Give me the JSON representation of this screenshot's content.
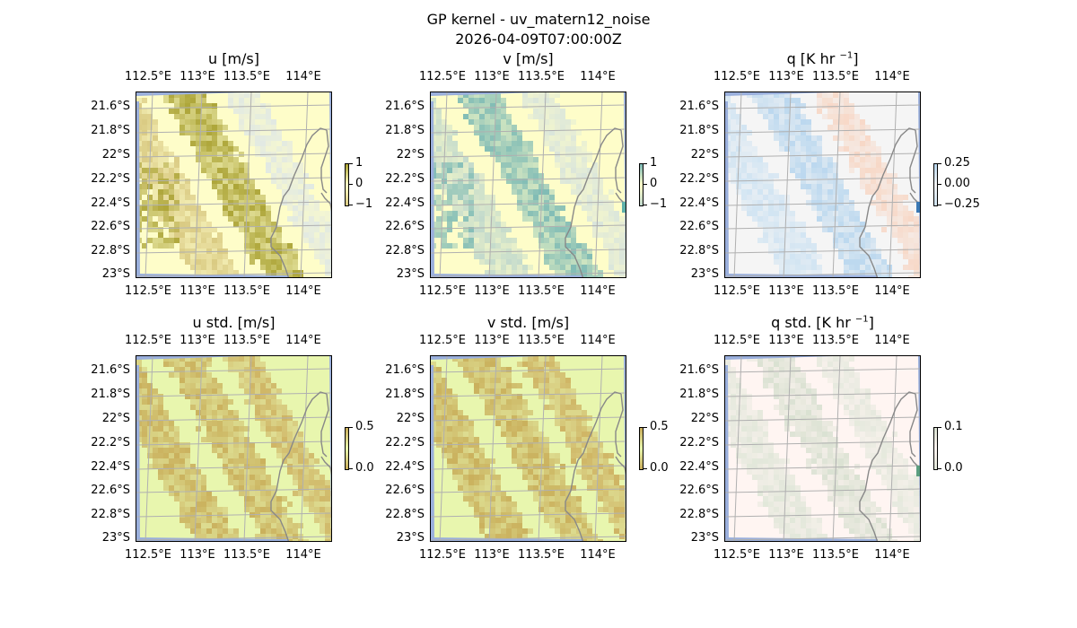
{
  "figure": {
    "title_line1": "GP kernel - uv_matern12_noise",
    "title_line2": "2026-04-09T07:00:00Z"
  },
  "axes_ticks": {
    "lon": [
      "112.5°E",
      "113°E",
      "113.5°E",
      "114°E"
    ],
    "lat": [
      "21.6°S",
      "21.8°S",
      "22°S",
      "22.2°S",
      "22.4°S",
      "22.6°S",
      "22.8°S",
      "23°S"
    ]
  },
  "colors": {
    "ocean_mask": "#9aafdc",
    "coastline": "#888888",
    "grid": "#b0b0b0"
  },
  "chart_data": [
    {
      "type": "heatmap",
      "id": "u",
      "title": "u [m/s]",
      "title_sup": "",
      "colorbar": {
        "ticks": [
          "1",
          "0",
          "−1"
        ],
        "range": [
          -1,
          1
        ]
      },
      "base_color": "#fefdc9",
      "band_colors": [
        "#d8c880",
        "#a8a030",
        "#e0e8e4"
      ]
    },
    {
      "type": "heatmap",
      "id": "v",
      "title": "v [m/s]",
      "title_sup": "",
      "colorbar": {
        "ticks": [
          "1",
          "0",
          "−1"
        ],
        "range": [
          -1,
          1
        ]
      },
      "base_color": "#fefdc9",
      "band_colors": [
        "#c0d8cc",
        "#7ab8b4",
        "#d8e4dc"
      ]
    },
    {
      "type": "heatmap",
      "id": "q",
      "title": "q [K hr ",
      "title_sup": "−1",
      "title_end": "]",
      "colorbar": {
        "ticks": [
          "0.25",
          "0.00",
          "−0.25"
        ],
        "range": [
          -0.25,
          0.25
        ]
      },
      "base_color": "#f5f5f5",
      "band_colors": [
        "#cfe3f2",
        "#b8d6ee",
        "#f7d6c4"
      ]
    },
    {
      "type": "heatmap",
      "id": "u_std",
      "title": "u std. [m/s]",
      "title_sup": "",
      "colorbar": {
        "ticks": [
          "0.5",
          "0.0"
        ],
        "range": [
          0,
          0.5
        ]
      },
      "base_color": "#e8f6ae",
      "band_colors": [
        "#c8ac58",
        "#c8ac58",
        "#cdb060"
      ]
    },
    {
      "type": "heatmap",
      "id": "v_std",
      "title": "v std. [m/s]",
      "title_sup": "",
      "colorbar": {
        "ticks": [
          "0.5",
          "0.0"
        ],
        "range": [
          0,
          0.5
        ]
      },
      "base_color": "#e8f6ae",
      "band_colors": [
        "#c8ac58",
        "#c8ac58",
        "#cdb060"
      ]
    },
    {
      "type": "heatmap",
      "id": "q_std",
      "title": "q std. [K hr ",
      "title_sup": "−1",
      "title_end": "]",
      "colorbar": {
        "ticks": [
          "0.1",
          "0.0"
        ],
        "range": [
          0,
          0.1
        ]
      },
      "base_color": "#fff5f2",
      "band_colors": [
        "#e0e6d8",
        "#d8e0d0",
        "#e4e8dc"
      ]
    }
  ]
}
